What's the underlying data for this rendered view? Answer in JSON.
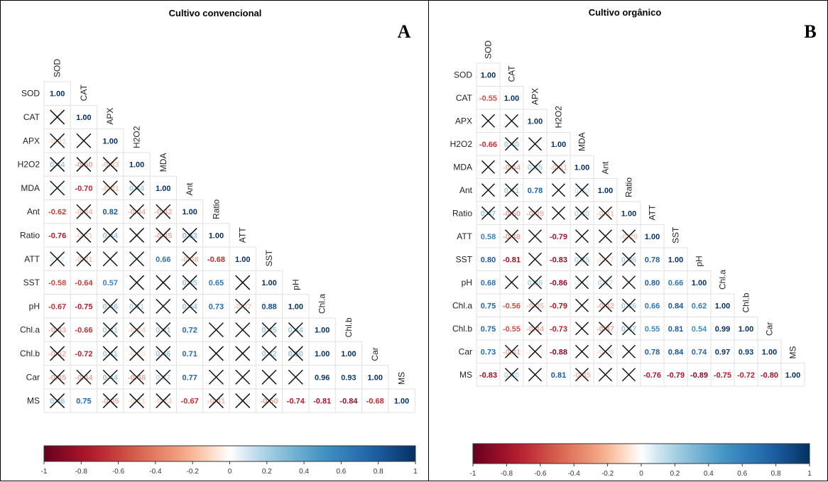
{
  "chart_data": [
    {
      "type": "heatmap",
      "title": "Cultivo convencional",
      "panel_label": "A",
      "variables": [
        "SOD",
        "CAT",
        "APX",
        "H2O2",
        "MDA",
        "Ant",
        "Ratio",
        "ATT",
        "SST",
        "pH",
        "Chl.a",
        "Chl.b",
        "Car",
        "MS"
      ],
      "legend_ticks": [
        "-1",
        "-0.8",
        "-0.6",
        "-0.4",
        "-0.2",
        "0",
        "0.2",
        "0.4",
        "0.6",
        "0.8",
        "1"
      ],
      "color_scale": {
        "low": "#67001F",
        "mid": "#FFFFFF",
        "high": "#053061"
      },
      "cells": [
        [
          "1.00"
        ],
        [
          "-0.07",
          "1.00"
        ],
        [
          "-0.21",
          "0.00",
          "1.00"
        ],
        [
          "0.44",
          "-0.50",
          "-0.33",
          "1.00"
        ],
        [
          "0.13",
          "-0.70",
          "-0.31",
          "0.44",
          "1.00"
        ],
        [
          "-0.62",
          "-0.34",
          "0.82",
          "-0.44",
          "-0.42",
          "1.00"
        ],
        [
          "-0.76",
          "-0.21",
          "0.44",
          "0.05",
          "-0.45",
          "0.53",
          "1.00"
        ],
        [
          "0.17",
          "-0.31",
          "0.00",
          "0.11",
          "0.66",
          "-0.38",
          "-0.68",
          "1.00"
        ],
        [
          "-0.58",
          "-0.64",
          "0.57",
          "0.01",
          "0.00",
          "0.45",
          "0.65",
          "0.00",
          "1.00"
        ],
        [
          "-0.67",
          "-0.75",
          "0.46",
          "0.31",
          "0.00",
          "0.44",
          "0.73",
          "-0.27",
          "0.88",
          "1.00"
        ],
        [
          "-0.43",
          "-0.66",
          "0.41",
          "-0.24",
          "0.41",
          "0.72",
          "0.00",
          "0.00",
          "0.45",
          "0.44",
          "1.00"
        ],
        [
          "-0.42",
          "-0.72",
          "0.41",
          "-0.15",
          "0.46",
          "0.71",
          "0.00",
          "0.00",
          "0.42",
          "0.50",
          "1.00",
          "1.00"
        ],
        [
          "-0.45",
          "-0.44",
          "0.44",
          "-0.48",
          "0.27",
          "0.77",
          "0.00",
          "0.00",
          "0.01",
          "0.00",
          "0.96",
          "0.93",
          "1.00"
        ],
        [
          "0.46",
          "0.75",
          "-0.45",
          "-0.21",
          "-0.23",
          "-0.67",
          "-0.41",
          "0.10",
          "-0.50",
          "-0.74",
          "-0.81",
          "-0.84",
          "-0.68",
          "1.00"
        ]
      ],
      "crossed": [
        [
          false
        ],
        [
          true,
          false
        ],
        [
          true,
          true,
          false
        ],
        [
          true,
          true,
          true,
          false
        ],
        [
          true,
          false,
          true,
          true,
          false
        ],
        [
          false,
          true,
          false,
          true,
          true,
          false
        ],
        [
          false,
          true,
          true,
          true,
          true,
          true,
          false
        ],
        [
          true,
          true,
          true,
          true,
          false,
          true,
          false,
          false
        ],
        [
          false,
          false,
          false,
          true,
          true,
          true,
          false,
          true,
          false
        ],
        [
          false,
          false,
          true,
          true,
          true,
          true,
          false,
          true,
          false,
          false
        ],
        [
          true,
          false,
          true,
          true,
          true,
          false,
          true,
          true,
          true,
          true,
          false
        ],
        [
          true,
          false,
          true,
          true,
          true,
          false,
          true,
          true,
          true,
          true,
          false,
          false
        ],
        [
          true,
          true,
          true,
          true,
          true,
          false,
          true,
          true,
          true,
          true,
          false,
          false,
          false
        ],
        [
          true,
          false,
          true,
          true,
          true,
          false,
          true,
          true,
          true,
          false,
          false,
          false,
          false,
          false
        ]
      ]
    },
    {
      "type": "heatmap",
      "title": "Cultivo orgânico",
      "panel_label": "B",
      "variables": [
        "SOD",
        "CAT",
        "APX",
        "H2O2",
        "MDA",
        "Ant",
        "Ratio",
        "ATT",
        "SST",
        "pH",
        "Chl.a",
        "Chl.b",
        "Car",
        "MS"
      ],
      "legend_ticks": [
        "-1",
        "-0.8",
        "-0.6",
        "-0.4",
        "-0.2",
        "0",
        "0.2",
        "0.4",
        "0.6",
        "0.8",
        "1"
      ],
      "color_scale": {
        "low": "#67001F",
        "mid": "#FFFFFF",
        "high": "#053061"
      },
      "cells": [
        [
          "1.00"
        ],
        [
          "-0.55",
          "1.00"
        ],
        [
          "0.00",
          "0.00",
          "1.00"
        ],
        [
          "-0.66",
          "0.40",
          "0.05",
          "1.00"
        ],
        [
          "0.00",
          "-0.44",
          "0.35",
          "-0.31",
          "1.00"
        ],
        [
          "0.00",
          "0.41",
          "0.78",
          "0.00",
          "0.20",
          "1.00"
        ],
        [
          "0.47",
          "-0.50",
          "-0.39",
          "0.00",
          "0.30",
          "-0.31",
          "1.00"
        ],
        [
          "0.58",
          "-0.48",
          "0.00",
          "-0.79",
          "0.00",
          "0.00",
          "-0.29",
          "1.00"
        ],
        [
          "0.80",
          "-0.81",
          "0.00",
          "-0.83",
          "0.35",
          "-0.17",
          "0.36",
          "0.78",
          "1.00"
        ],
        [
          "0.68",
          "0.00",
          "0.36",
          "-0.86",
          "0.11",
          "0.27",
          "0.00",
          "0.80",
          "0.66",
          "1.00"
        ],
        [
          "0.75",
          "-0.56",
          "-0.35",
          "-0.79",
          "0.00",
          "-0.42",
          "0.36",
          "0.66",
          "0.84",
          "0.62",
          "1.00"
        ],
        [
          "0.75",
          "-0.55",
          "-0.44",
          "-0.73",
          "0.00",
          "-0.47",
          "0.47",
          "0.55",
          "0.81",
          "0.54",
          "0.99",
          "1.00"
        ],
        [
          "0.73",
          "-0.41",
          "-0.12",
          "-0.88",
          "0.00",
          "-0.20",
          "0.00",
          "0.78",
          "0.84",
          "0.74",
          "0.97",
          "0.93",
          "1.00"
        ],
        [
          "-0.83",
          "0.30",
          "0.00",
          "0.81",
          "-0.35",
          "0.00",
          "0.00",
          "-0.76",
          "-0.79",
          "-0.89",
          "-0.75",
          "-0.72",
          "-0.80",
          "1.00"
        ]
      ],
      "crossed": [
        [
          false
        ],
        [
          false,
          false
        ],
        [
          true,
          true,
          false
        ],
        [
          false,
          true,
          true,
          false
        ],
        [
          true,
          true,
          true,
          true,
          false
        ],
        [
          true,
          true,
          false,
          true,
          true,
          false
        ],
        [
          true,
          true,
          true,
          true,
          true,
          true,
          false
        ],
        [
          false,
          true,
          true,
          false,
          true,
          true,
          true,
          false
        ],
        [
          false,
          false,
          true,
          false,
          true,
          true,
          true,
          false,
          false
        ],
        [
          false,
          true,
          true,
          false,
          true,
          true,
          true,
          false,
          false,
          false
        ],
        [
          false,
          false,
          true,
          false,
          true,
          true,
          true,
          false,
          false,
          false,
          false
        ],
        [
          false,
          false,
          true,
          false,
          true,
          true,
          true,
          false,
          false,
          false,
          false,
          false
        ],
        [
          false,
          true,
          true,
          false,
          true,
          true,
          true,
          false,
          false,
          false,
          false,
          false,
          false
        ],
        [
          false,
          true,
          true,
          false,
          true,
          true,
          true,
          false,
          false,
          false,
          false,
          false,
          false,
          false
        ]
      ]
    }
  ]
}
